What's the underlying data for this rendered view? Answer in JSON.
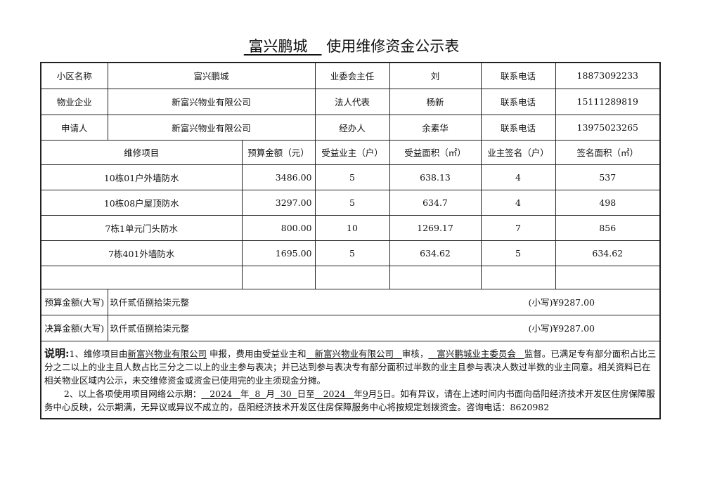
{
  "title": {
    "name": "富兴鹏城",
    "suffix": "使用维修资金公示表"
  },
  "info": [
    {
      "l1": "小区名称",
      "v1": "富兴鹏城",
      "l2": "业委会主任",
      "v2": "刘",
      "l3": "联系电话",
      "v3": "18873092233"
    },
    {
      "l1": "物业企业",
      "v1": "新富兴物业有限公司",
      "l2": "法人代表",
      "v2": "杨新",
      "l3": "联系电话",
      "v3": "15111289819"
    },
    {
      "l1": "申请人",
      "v1": "新富兴物业有限公司",
      "l2": "经办人",
      "v2": "余素华",
      "l3": "联系电话",
      "v3": "13975023265"
    }
  ],
  "headers": [
    "维修项目",
    "预算金额（元）",
    "受益业主（户）",
    "受益面积（㎡）",
    "业主签名（户）",
    "签名面积（㎡）"
  ],
  "rows": [
    [
      "10栋01户外墙防水",
      "3486.00",
      "5",
      "638.13",
      "4",
      "537"
    ],
    [
      "10栋08户屋顶防水",
      "3297.00",
      "5",
      "634.7",
      "4",
      "498"
    ],
    [
      "7栋1单元门头防水",
      "800.00",
      "10",
      "1269.17",
      "7",
      "856"
    ],
    [
      "7栋401外墙防水",
      "1695.00",
      "5",
      "634.62",
      "5",
      "634.62"
    ]
  ],
  "budget": {
    "label": "预算金额(大写)",
    "upper": "玖仟贰佰捌拾柒元整",
    "lower": "(小写)¥9287.00"
  },
  "final": {
    "label": "决算金额(大写)",
    "upper": "玖仟贰佰捌拾柒元整",
    "lower": "(小写)¥9287.00"
  },
  "notes": {
    "lead": "说明:",
    "p1a": "1、维修项目由",
    "p1b": "新富兴物业有限公司",
    "p1c": "申报，费用由受益业主和",
    "p1d": "新富兴物业有限公司",
    "p1e": "审核，",
    "p1f": "富兴鹏城业主委员会",
    "p1g": "监督。已满足专有部分面积占比三分之二以上的业主且人数占比三分之二以上的业主参与表决；并已达到参与表决专有部分面积过半数的业主且参与表决人数过半数的业主同意。相关资料已在相关物业区域内公示，未交维修资金或资金已使用完的业主须现金分摊。",
    "p2a": "2、以上各项使用项目网络公示期：",
    "y1": "2024",
    "t1": "年",
    "m1": "8",
    "t2": "月",
    "d1": "30",
    "t3": "日至",
    "y2": "2024",
    "t4": "年",
    "m2": "9",
    "t5": "月",
    "d2": "5",
    "p2b": "日。如有异议，请在上述时间内书面向岳阳经济技术开发区住房保障服务中心反映，公示期满，无异议或异议不成立的，岳阳经济技术开发区住房保障服务中心将按规定划拨资金。咨询电话：8620982"
  }
}
